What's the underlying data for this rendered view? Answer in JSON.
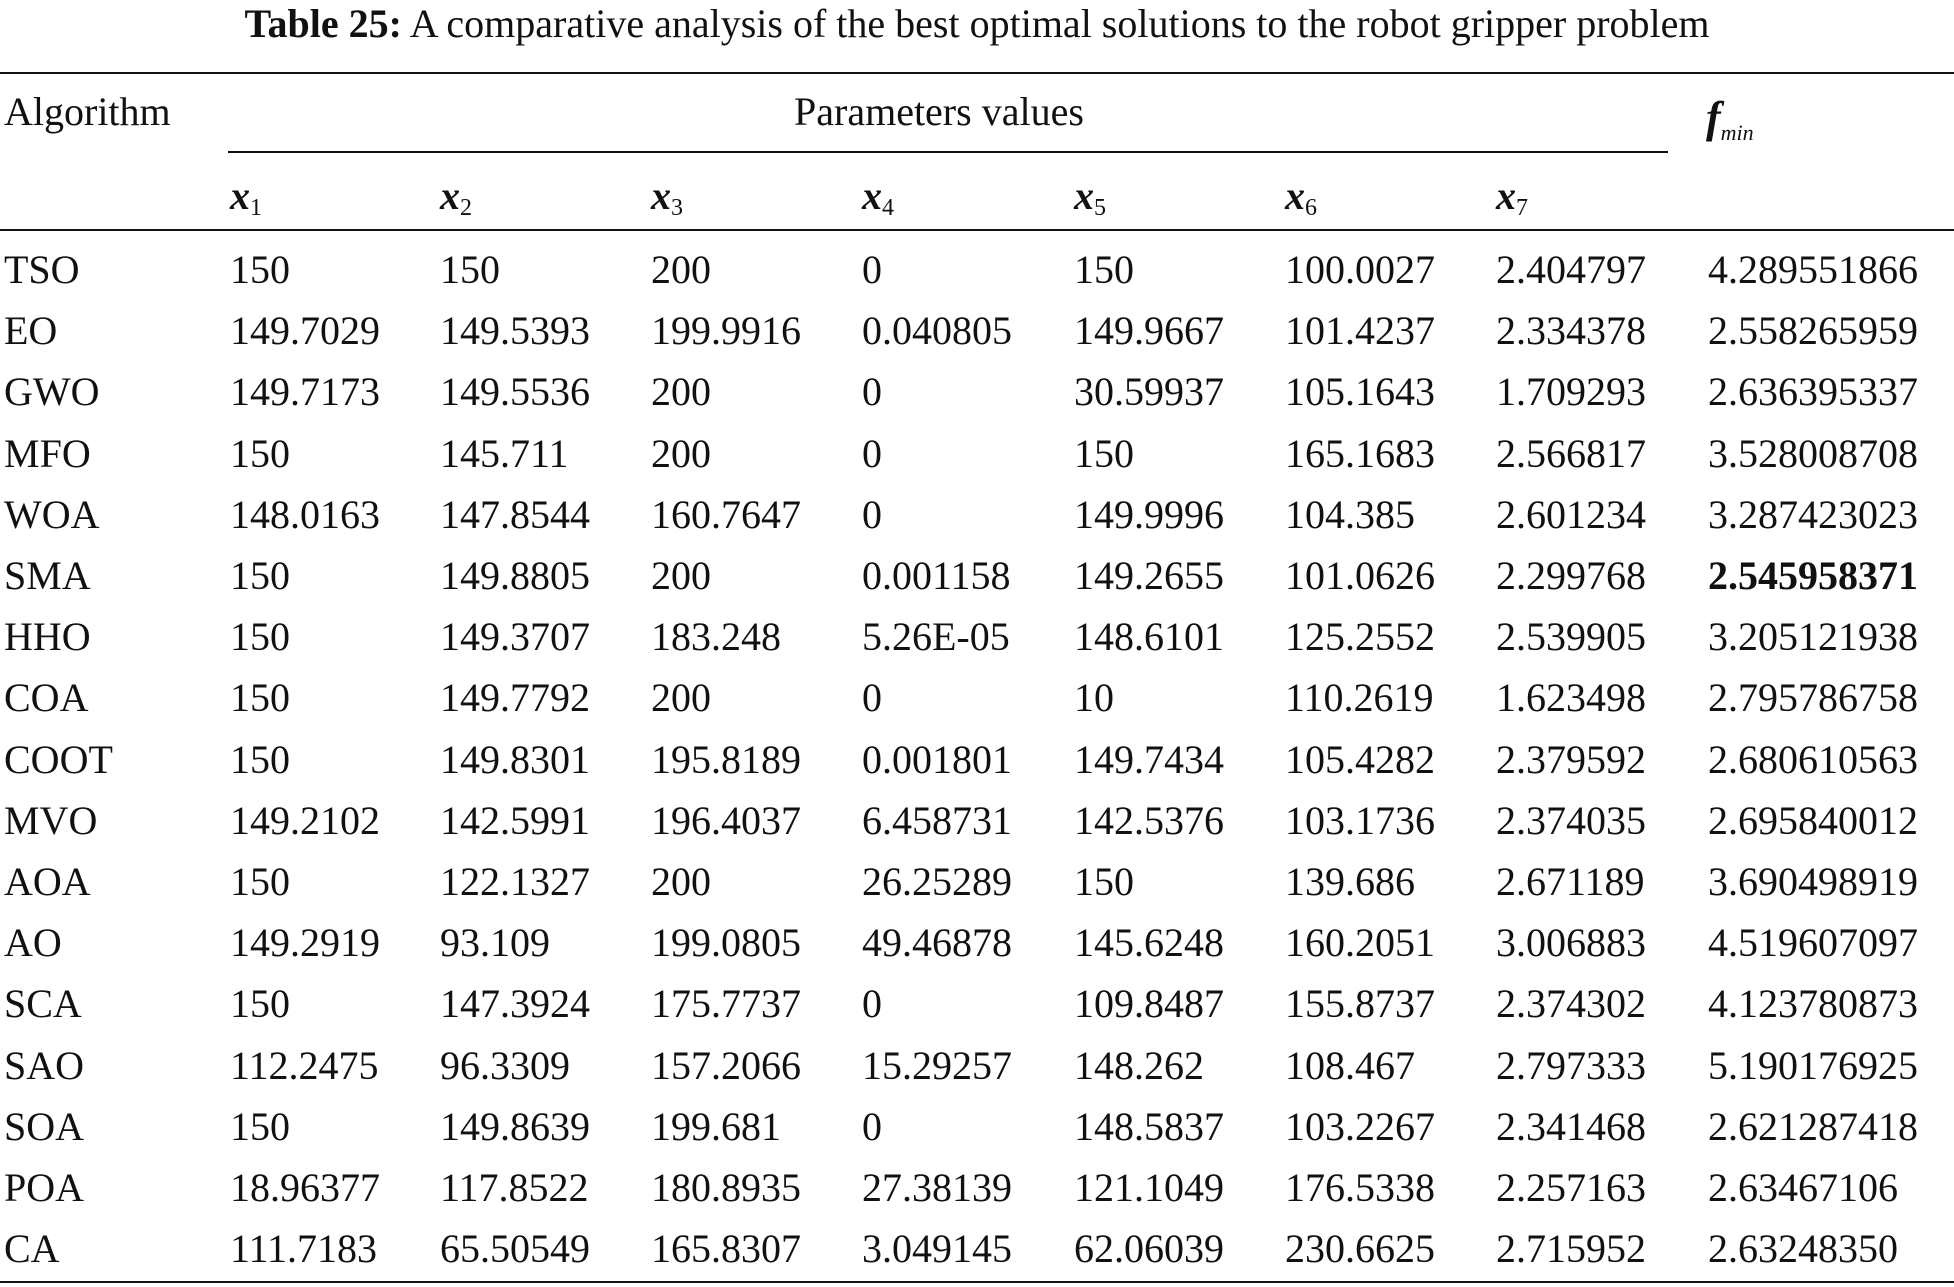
{
  "caption": {
    "label": "Table 25:",
    "text": "A comparative analysis of the best optimal solutions to the robot gripper problem"
  },
  "header": {
    "algorithm": "Algorithm",
    "group": "Parameters values",
    "fmin_main": "f",
    "fmin_sub": "min",
    "params": [
      {
        "main": "x",
        "sub": "1"
      },
      {
        "main": "x",
        "sub": "2"
      },
      {
        "main": "x",
        "sub": "3"
      },
      {
        "main": "x",
        "sub": "4"
      },
      {
        "main": "x",
        "sub": "5"
      },
      {
        "main": "x",
        "sub": "6"
      },
      {
        "main": "x",
        "sub": "7"
      }
    ]
  },
  "rows": [
    {
      "algorithm": "TSO",
      "values": [
        "150",
        "150",
        "200",
        "0",
        "150",
        "100.0027",
        "2.404797"
      ],
      "fmin": "4.289551866"
    },
    {
      "algorithm": "EO",
      "values": [
        "149.7029",
        "149.5393",
        "199.9916",
        "0.040805",
        "149.9667",
        "101.4237",
        "2.334378"
      ],
      "fmin": "2.558265959"
    },
    {
      "algorithm": "GWO",
      "values": [
        "149.7173",
        "149.5536",
        "200",
        "0",
        "30.59937",
        "105.1643",
        "1.709293"
      ],
      "fmin": "2.636395337"
    },
    {
      "algorithm": "MFO",
      "values": [
        "150",
        "145.711",
        "200",
        "0",
        "150",
        "165.1683",
        "2.566817"
      ],
      "fmin": "3.528008708"
    },
    {
      "algorithm": "WOA",
      "values": [
        "148.0163",
        "147.8544",
        "160.7647",
        "0",
        "149.9996",
        "104.385",
        "2.601234"
      ],
      "fmin": "3.287423023"
    },
    {
      "algorithm": "SMA",
      "values": [
        "150",
        "149.8805",
        "200",
        "0.001158",
        "149.2655",
        "101.0626",
        "2.299768"
      ],
      "fmin": "2.545958371",
      "best": true
    },
    {
      "algorithm": "HHO",
      "values": [
        "150",
        "149.3707",
        "183.248",
        "5.26E-05",
        "148.6101",
        "125.2552",
        "2.539905"
      ],
      "fmin": "3.205121938"
    },
    {
      "algorithm": "COA",
      "values": [
        "150",
        "149.7792",
        "200",
        "0",
        "10",
        "110.2619",
        "1.623498"
      ],
      "fmin": "2.795786758"
    },
    {
      "algorithm": "COOT",
      "values": [
        "150",
        "149.8301",
        "195.8189",
        "0.001801",
        "149.7434",
        "105.4282",
        "2.379592"
      ],
      "fmin": "2.680610563"
    },
    {
      "algorithm": "MVO",
      "values": [
        "149.2102",
        "142.5991",
        "196.4037",
        "6.458731",
        "142.5376",
        "103.1736",
        "2.374035"
      ],
      "fmin": "2.695840012"
    },
    {
      "algorithm": "AOA",
      "values": [
        "150",
        "122.1327",
        "200",
        "26.25289",
        "150",
        "139.686",
        "2.671189"
      ],
      "fmin": "3.690498919"
    },
    {
      "algorithm": "AO",
      "values": [
        "149.2919",
        "93.109",
        "199.0805",
        "49.46878",
        "145.6248",
        "160.2051",
        "3.006883"
      ],
      "fmin": "4.519607097"
    },
    {
      "algorithm": "SCA",
      "values": [
        "150",
        "147.3924",
        "175.7737",
        "0",
        "109.8487",
        "155.8737",
        "2.374302"
      ],
      "fmin": "4.123780873"
    },
    {
      "algorithm": "SAO",
      "values": [
        "112.2475",
        "96.3309",
        "157.2066",
        "15.29257",
        "148.262",
        "108.467",
        "2.797333"
      ],
      "fmin": "5.190176925"
    },
    {
      "algorithm": "SOA",
      "values": [
        "150",
        "149.8639",
        "199.681",
        "0",
        "148.5837",
        "103.2267",
        "2.341468"
      ],
      "fmin": "2.621287418"
    },
    {
      "algorithm": "POA",
      "values": [
        "18.96377",
        "117.8522",
        "180.8935",
        "27.38139",
        "121.1049",
        "176.5338",
        "2.257163"
      ],
      "fmin": "2.63467106"
    },
    {
      "algorithm": "CA",
      "values": [
        "111.7183",
        "65.50549",
        "165.8307",
        "3.049145",
        "62.06039",
        "230.6625",
        "2.715952"
      ],
      "fmin": "2.63248350"
    }
  ]
}
